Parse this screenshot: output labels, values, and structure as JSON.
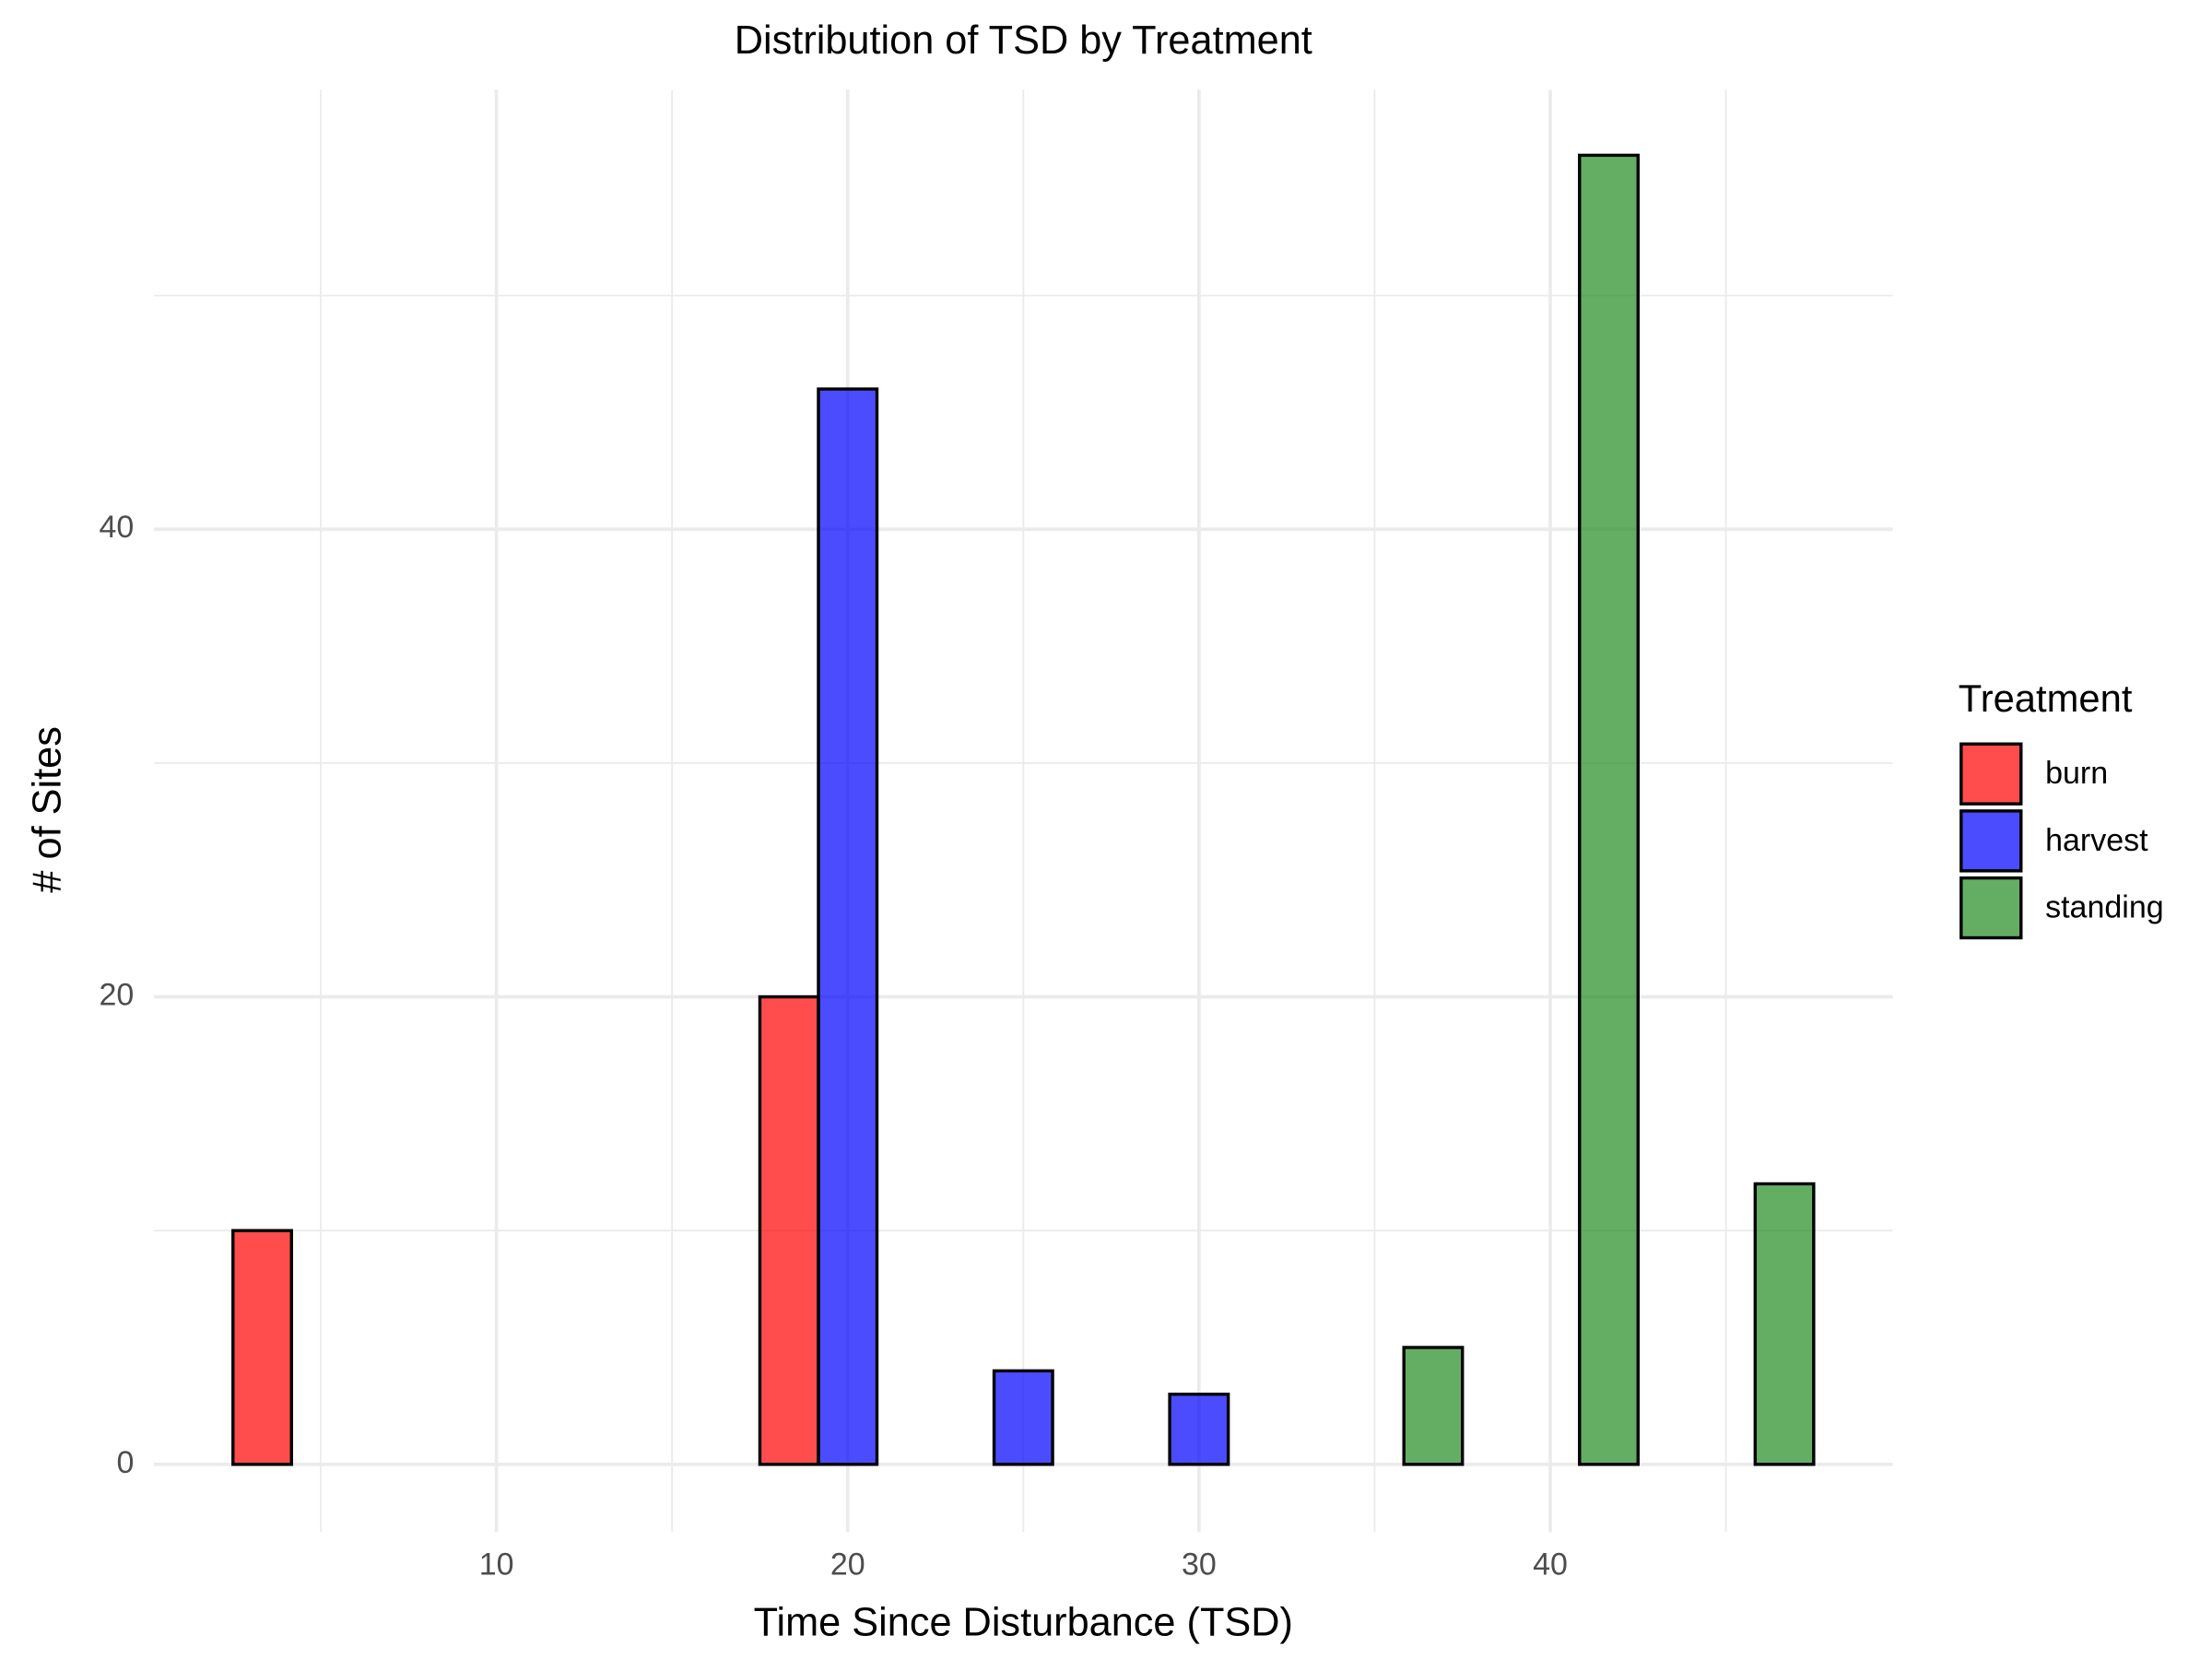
{
  "chart_data": {
    "type": "histogram",
    "title": "Distribution of TSD by Treatment",
    "x_label": "Time Since Disturbance (TSD)",
    "y_label": "# of Sites",
    "bins": [
      2.5,
      7.5,
      12.5,
      17.5,
      22.5,
      27.5,
      32.5,
      37.5,
      42.5,
      47.5
    ],
    "series": [
      {
        "name": "burn",
        "color": "#ff0000",
        "values": [
          10,
          0,
          0,
          20,
          0,
          0,
          0,
          0,
          0
        ]
      },
      {
        "name": "harvest",
        "color": "#0000ff",
        "values": [
          0,
          0,
          0,
          46,
          4,
          3,
          0,
          0,
          0
        ]
      },
      {
        "name": "standing",
        "color": "#228b22",
        "values": [
          0,
          0,
          0,
          0,
          0,
          0,
          5,
          56,
          12
        ]
      }
    ],
    "alpha": 0.7,
    "position": "dodge",
    "legend_title": "Treatment",
    "legend_position": "right",
    "xlim": [
      0.25,
      49.75
    ],
    "ylim": [
      -2.9,
      58.8
    ],
    "xticks": [
      10,
      20,
      30,
      40
    ],
    "yticks": [
      0,
      20,
      40
    ],
    "minor_xticks": [
      5,
      15,
      25,
      35,
      45
    ],
    "minor_yticks": [
      10,
      30,
      50
    ],
    "grid": true
  }
}
